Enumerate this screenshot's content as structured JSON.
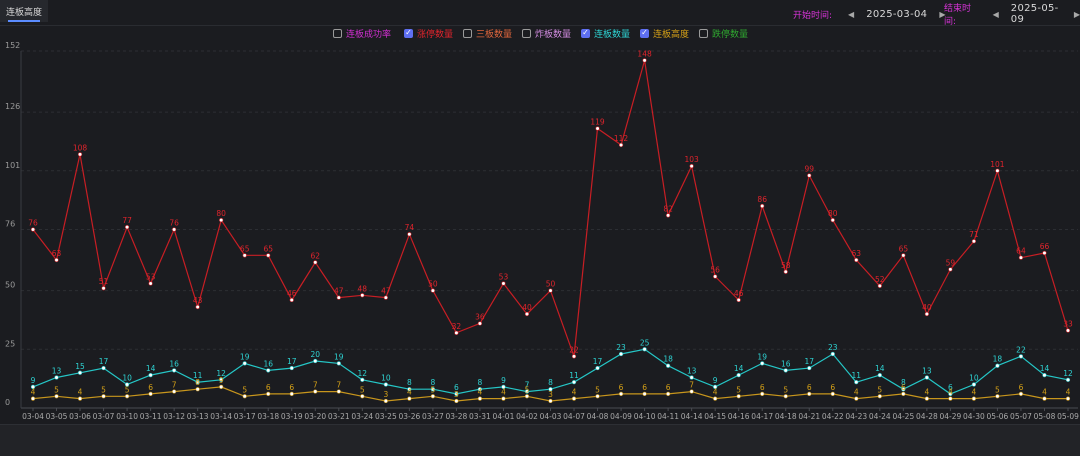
{
  "tab": {
    "label": "连板高度"
  },
  "date_range": {
    "start_label": "开始时间:",
    "start_value": "2025-03-04",
    "end_label": "结束时间:",
    "end_value": "2025-05-09",
    "prev_glyph": "◀",
    "next_glyph": "▶"
  },
  "legend": [
    {
      "label": "连板成功率",
      "checked": false,
      "color": "#d12fd1"
    },
    {
      "label": "涨停数量",
      "checked": true,
      "color": "#e0242c"
    },
    {
      "label": "三板数量",
      "checked": false,
      "color": "#e0663c"
    },
    {
      "label": "炸板数量",
      "checked": false,
      "color": "#d28ce0"
    },
    {
      "label": "连板数量",
      "checked": true,
      "color": "#2ed3d3"
    },
    {
      "label": "连板高度",
      "checked": true,
      "color": "#d4a017"
    },
    {
      "label": "跌停数量",
      "checked": false,
      "color": "#2fa82f"
    }
  ],
  "chart_data": {
    "type": "line",
    "ylim": [
      0,
      152
    ],
    "yticks": [
      "0",
      "25",
      "50",
      "76",
      "101",
      "126",
      "152"
    ],
    "categories": [
      "03-04",
      "03-05",
      "03-06",
      "03-07",
      "03-10",
      "03-11",
      "03-12",
      "03-13",
      "03-14",
      "03-17",
      "03-18",
      "03-19",
      "03-20",
      "03-21",
      "03-24",
      "03-25",
      "03-26",
      "03-27",
      "03-28",
      "03-31",
      "04-01",
      "04-02",
      "04-03",
      "04-07",
      "04-08",
      "04-09",
      "04-10",
      "04-11",
      "04-14",
      "04-15",
      "04-16",
      "04-17",
      "04-18",
      "04-21",
      "04-22",
      "04-23",
      "04-24",
      "04-25",
      "04-28",
      "04-29",
      "04-30",
      "05-06",
      "05-07",
      "05-08",
      "05-09"
    ],
    "series": [
      {
        "name": "涨停数量",
        "color": "#c81e24",
        "label_color": "#e0242c",
        "values": [
          76,
          63,
          108,
          51,
          77,
          53,
          76,
          43,
          80,
          65,
          65,
          46,
          62,
          47,
          48,
          47,
          74,
          50,
          32,
          36,
          53,
          40,
          50,
          22,
          119,
          112,
          148,
          82,
          103,
          56,
          46,
          86,
          58,
          99,
          80,
          63,
          52,
          65,
          40,
          59,
          71,
          101,
          64,
          66,
          33
        ],
        "labels": [
          "76",
          "63",
          "108",
          "51",
          "77",
          "53",
          "76",
          "43",
          "80",
          "65",
          "65",
          "46",
          "62",
          "47",
          "48",
          "47",
          "74",
          "50",
          "32",
          "36",
          "53",
          "40",
          "50",
          "22",
          "119",
          "112",
          "148",
          "82",
          "103",
          "56",
          "46",
          "86",
          "58",
          "99",
          "80",
          "63",
          "52",
          "65",
          "40",
          "59",
          "71",
          "101",
          "64",
          "66",
          "33"
        ]
      },
      {
        "name": "连板数量",
        "color": "#25c7c7",
        "label_color": "#2ed3d3",
        "values": [
          9,
          13,
          15,
          17,
          10,
          14,
          16,
          11,
          12,
          19,
          16,
          17,
          20,
          19,
          12,
          10,
          8,
          8,
          6,
          8,
          9,
          7,
          8,
          11,
          17,
          23,
          25,
          18,
          13,
          9,
          14,
          19,
          16,
          17,
          23,
          11,
          14,
          8,
          13,
          6,
          10,
          18,
          22,
          14,
          12
        ],
        "labels": [
          "9",
          "13",
          "15",
          "17",
          "10",
          "14",
          "16",
          "11",
          "12",
          "19",
          "16",
          "17",
          "20",
          "19",
          "12",
          "10",
          "8",
          "8",
          "6",
          "8",
          "9",
          "7",
          "8",
          "11",
          "17",
          "23",
          "25",
          "18",
          "13",
          "9",
          "14",
          "19",
          "16",
          "17",
          "23",
          "11",
          "14",
          "8",
          "13",
          "6",
          "10",
          "18",
          "22",
          "14",
          "12"
        ]
      },
      {
        "name": "连板高度",
        "color": "#c8961c",
        "label_color": "#d4a017",
        "values": [
          4,
          5,
          4,
          5,
          5,
          6,
          7,
          8,
          9,
          5,
          6,
          6,
          7,
          7,
          5,
          3,
          4,
          5,
          3,
          4,
          4,
          5,
          3,
          4,
          5,
          6,
          6,
          6,
          7,
          4,
          5,
          6,
          5,
          6,
          6,
          4,
          5,
          6,
          4,
          4,
          4,
          5,
          6,
          4,
          4
        ],
        "labels": [
          "4",
          "5",
          "4",
          "5",
          "5",
          "6",
          "7",
          "8",
          "9",
          "5",
          "6",
          "6",
          "7",
          "7",
          "5",
          "3",
          "4",
          "5",
          "3",
          "4",
          "4",
          "5",
          "3",
          "4",
          "5",
          "6",
          "6",
          "6",
          "7",
          "4",
          "5",
          "6",
          "5",
          "6",
          "6",
          "4",
          "5",
          "6",
          "4",
          "4",
          "4",
          "5",
          "6",
          "4",
          "4"
        ]
      }
    ]
  }
}
